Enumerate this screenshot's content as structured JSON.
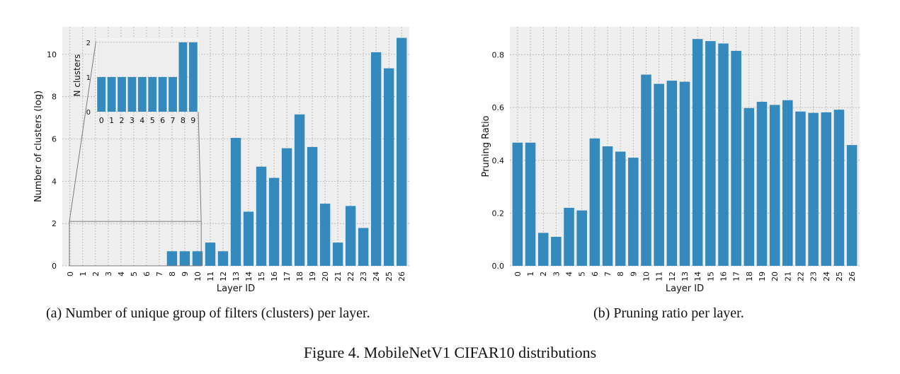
{
  "figure": {
    "title": "Figure 4. MobileNetV1 CIFAR10 distributions",
    "captions": {
      "a": "(a) Number of unique group of filters (clusters) per layer.",
      "b": "(b) Pruning ratio per layer."
    }
  },
  "colors": {
    "bar": "#348abd",
    "panel_bg": "#eeeeee",
    "grid": "#b0b0b0"
  },
  "chart_data": [
    {
      "type": "bar",
      "title": "",
      "xlabel": "Layer ID",
      "ylabel": "Number of clusters (log)",
      "categories": [
        "0",
        "1",
        "2",
        "3",
        "4",
        "5",
        "6",
        "7",
        "8",
        "9",
        "10",
        "11",
        "12",
        "13",
        "14",
        "15",
        "16",
        "17",
        "18",
        "19",
        "20",
        "21",
        "22",
        "23",
        "24",
        "25",
        "26"
      ],
      "values": [
        0,
        0,
        0,
        0,
        0,
        0,
        0,
        0,
        0.69,
        0.69,
        0.69,
        1.1,
        0.69,
        6.05,
        2.56,
        4.69,
        4.16,
        5.56,
        7.16,
        5.62,
        2.94,
        1.1,
        2.83,
        1.79,
        10.1,
        9.34,
        10.78
      ],
      "ylim": [
        0,
        11.3
      ],
      "yticks": [
        "0",
        "2",
        "4",
        "6",
        "8",
        "10"
      ],
      "grid": true,
      "inset": {
        "ylabel": "N clusters",
        "categories": [
          "0",
          "1",
          "2",
          "3",
          "4",
          "5",
          "6",
          "7",
          "8",
          "9"
        ],
        "values": [
          1,
          1,
          1,
          1,
          1,
          1,
          1,
          1,
          2,
          2
        ],
        "yticks": [
          "0",
          "1",
          "2"
        ],
        "ylim": [
          0,
          2.1
        ]
      }
    },
    {
      "type": "bar",
      "title": "",
      "xlabel": "Layer ID",
      "ylabel": "Pruning Ratio",
      "categories": [
        "0",
        "1",
        "2",
        "3",
        "4",
        "5",
        "6",
        "7",
        "8",
        "9",
        "10",
        "11",
        "12",
        "13",
        "14",
        "15",
        "16",
        "17",
        "18",
        "19",
        "20",
        "21",
        "22",
        "23",
        "24",
        "25",
        "26"
      ],
      "values": [
        0.467,
        0.467,
        0.125,
        0.11,
        0.22,
        0.21,
        0.483,
        0.453,
        0.433,
        0.41,
        0.725,
        0.69,
        0.702,
        0.698,
        0.86,
        0.852,
        0.843,
        0.815,
        0.598,
        0.622,
        0.61,
        0.628,
        0.585,
        0.58,
        0.582,
        0.592,
        0.458
      ],
      "ylim": [
        0,
        0.906
      ],
      "yticks": [
        "0.0",
        "0.2",
        "0.4",
        "0.6",
        "0.8"
      ],
      "grid": true
    }
  ]
}
